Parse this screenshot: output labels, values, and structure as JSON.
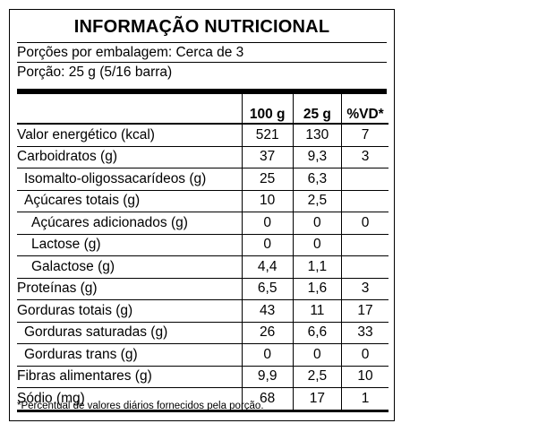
{
  "title": "INFORMAÇÃO NUTRICIONAL",
  "servings_per_package": "Porções por embalagem: Cerca de 3",
  "serving_size": "Porção: 25 g (5/16 barra)",
  "columns": [
    "100 g",
    "25 g",
    "%VD*"
  ],
  "rows": [
    {
      "label": "Valor energético (kcal)",
      "per100": "521",
      "per_serving": "130",
      "dv": "7",
      "indent": 0
    },
    {
      "label": "Carboidratos (g)",
      "per100": "37",
      "per_serving": "9,3",
      "dv": "3",
      "indent": 0
    },
    {
      "label": "Isomalto-oligossacarídeos (g)",
      "per100": "25",
      "per_serving": "6,3",
      "dv": "",
      "indent": 1
    },
    {
      "label": "Açúcares totais (g)",
      "per100": "10",
      "per_serving": "2,5",
      "dv": "",
      "indent": 1
    },
    {
      "label": "Açúcares adicionados (g)",
      "per100": "0",
      "per_serving": "0",
      "dv": "0",
      "indent": 2
    },
    {
      "label": "Lactose (g)",
      "per100": "0",
      "per_serving": "0",
      "dv": "",
      "indent": 2
    },
    {
      "label": "Galactose (g)",
      "per100": "4,4",
      "per_serving": "1,1",
      "dv": "",
      "indent": 2
    },
    {
      "label": "Proteínas (g)",
      "per100": "6,5",
      "per_serving": "1,6",
      "dv": "3",
      "indent": 0
    },
    {
      "label": "Gorduras totais (g)",
      "per100": "43",
      "per_serving": "11",
      "dv": "17",
      "indent": 0
    },
    {
      "label": "Gorduras saturadas (g)",
      "per100": "26",
      "per_serving": "6,6",
      "dv": "33",
      "indent": 1
    },
    {
      "label": "Gorduras trans (g)",
      "per100": "0",
      "per_serving": "0",
      "dv": "0",
      "indent": 1
    },
    {
      "label": "Fibras alimentares (g)",
      "per100": "9,9",
      "per_serving": "2,5",
      "dv": "10",
      "indent": 0
    },
    {
      "label": "Sódio (mg)",
      "per100": "68",
      "per_serving": "17",
      "dv": "1",
      "indent": 0
    }
  ],
  "footnote": "*Percentual de valores diários fornecidos pela porção."
}
